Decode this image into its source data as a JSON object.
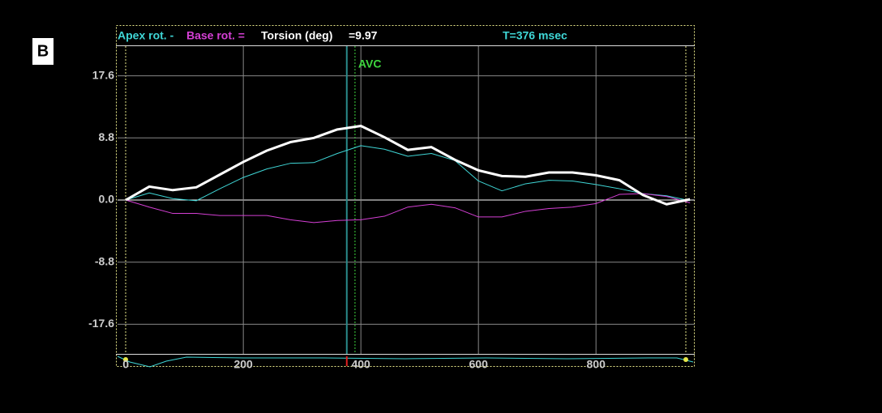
{
  "panel_label": "B",
  "chart_data": {
    "type": "line",
    "header": {
      "time_label": "T=376 msec",
      "torsion_label": "=9.97"
    },
    "annotations": [
      {
        "text": "AVC",
        "x": 390
      }
    ],
    "cursor_x": 376,
    "x": [
      0,
      40,
      80,
      120,
      160,
      200,
      240,
      280,
      320,
      360,
      400,
      440,
      480,
      520,
      560,
      600,
      640,
      680,
      720,
      760,
      800,
      840,
      880,
      920,
      960
    ],
    "series": [
      {
        "name": "Apex rot. -",
        "color": "#3fd6d6",
        "width": 1,
        "values": [
          0,
          1.0,
          0.2,
          -0.1,
          1.6,
          3.2,
          4.4,
          5.2,
          5.3,
          6.6,
          7.7,
          7.2,
          6.2,
          6.6,
          5.6,
          2.7,
          1.3,
          2.3,
          2.8,
          2.7,
          2.2,
          1.6,
          0.9,
          0.6,
          -0.1
        ]
      },
      {
        "name": "Base rot. =",
        "color": "#d43fd4",
        "width": 1,
        "values": [
          0,
          -1.0,
          -1.9,
          -1.9,
          -2.2,
          -2.2,
          -2.2,
          -2.8,
          -3.2,
          -2.9,
          -2.8,
          -2.3,
          -1.0,
          -0.6,
          -1.1,
          -2.4,
          -2.4,
          -1.6,
          -1.2,
          -1.0,
          -0.5,
          0.8,
          0.9,
          0.5,
          -0.4
        ]
      },
      {
        "name": "Torsion (deg)",
        "color": "#ffffff",
        "width": 3,
        "values": [
          0,
          1.9,
          1.4,
          1.8,
          3.6,
          5.4,
          7.0,
          8.2,
          8.8,
          10.0,
          10.5,
          8.9,
          7.1,
          7.5,
          5.7,
          4.2,
          3.4,
          3.3,
          3.9,
          3.9,
          3.5,
          2.8,
          0.7,
          -0.6,
          0.1
        ]
      }
    ],
    "xlim": [
      -14,
      968
    ],
    "xticks": [
      0,
      200,
      400,
      600,
      800
    ],
    "ylim": [
      -21.8,
      21.8
    ],
    "yticks": [
      17.6,
      8.8,
      {
        "value": 0,
        "label": "0.0"
      },
      -8.8,
      -17.6
    ],
    "grid": true
  }
}
